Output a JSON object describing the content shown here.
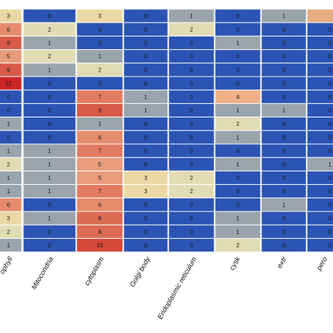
{
  "chart_data": {
    "type": "heatmap",
    "columns": [
      "ophyll",
      "Mitocondria",
      "cytoplasm",
      "Golgi body",
      "Endoplasmic reticulum",
      "cysk",
      "extr",
      "pero"
    ],
    "values": [
      [
        3,
        0,
        3,
        0,
        1,
        0,
        1,
        null
      ],
      [
        6,
        2,
        0,
        0,
        2,
        0,
        0,
        0
      ],
      [
        9,
        1,
        0,
        0,
        0,
        1,
        0,
        0
      ],
      [
        5,
        2,
        1,
        0,
        0,
        0,
        0,
        0
      ],
      [
        9,
        1,
        2,
        0,
        0,
        0,
        0,
        0
      ],
      [
        12,
        0,
        0,
        0,
        0,
        0,
        0,
        0
      ],
      [
        0,
        0,
        7,
        1,
        0,
        4,
        0,
        0
      ],
      [
        0,
        0,
        9,
        1,
        0,
        1,
        1,
        0
      ],
      [
        1,
        0,
        1,
        0,
        0,
        2,
        0,
        0
      ],
      [
        0,
        0,
        6,
        0,
        0,
        1,
        0,
        0
      ],
      [
        1,
        1,
        7,
        0,
        0,
        0,
        0,
        0
      ],
      [
        2,
        1,
        5,
        0,
        0,
        1,
        0,
        1
      ],
      [
        1,
        1,
        5,
        3,
        2,
        0,
        0,
        0
      ],
      [
        1,
        1,
        7,
        3,
        2,
        0,
        0,
        0
      ],
      [
        6,
        0,
        6,
        0,
        0,
        0,
        1,
        0
      ],
      [
        3,
        1,
        8,
        0,
        0,
        1,
        0,
        0
      ],
      [
        2,
        0,
        8,
        0,
        0,
        1,
        0,
        0
      ],
      [
        1,
        0,
        10,
        0,
        0,
        2,
        0,
        0
      ]
    ],
    "colors": {
      "0": "#2b54b4",
      "1": "#9aa4ad",
      "2": "#e2dcb4",
      "3": "#ecd8a4",
      "4": "#eeb086",
      "5": "#e89c7c",
      "6": "#e68c6c",
      "7": "#e27c60",
      "8": "#dc6c54",
      "9": "#d85a48",
      "10": "#d64838",
      "12": "#cc2626",
      "top_right": "#e9ad83"
    },
    "grid_color": "#ffffff",
    "legend": "none"
  }
}
